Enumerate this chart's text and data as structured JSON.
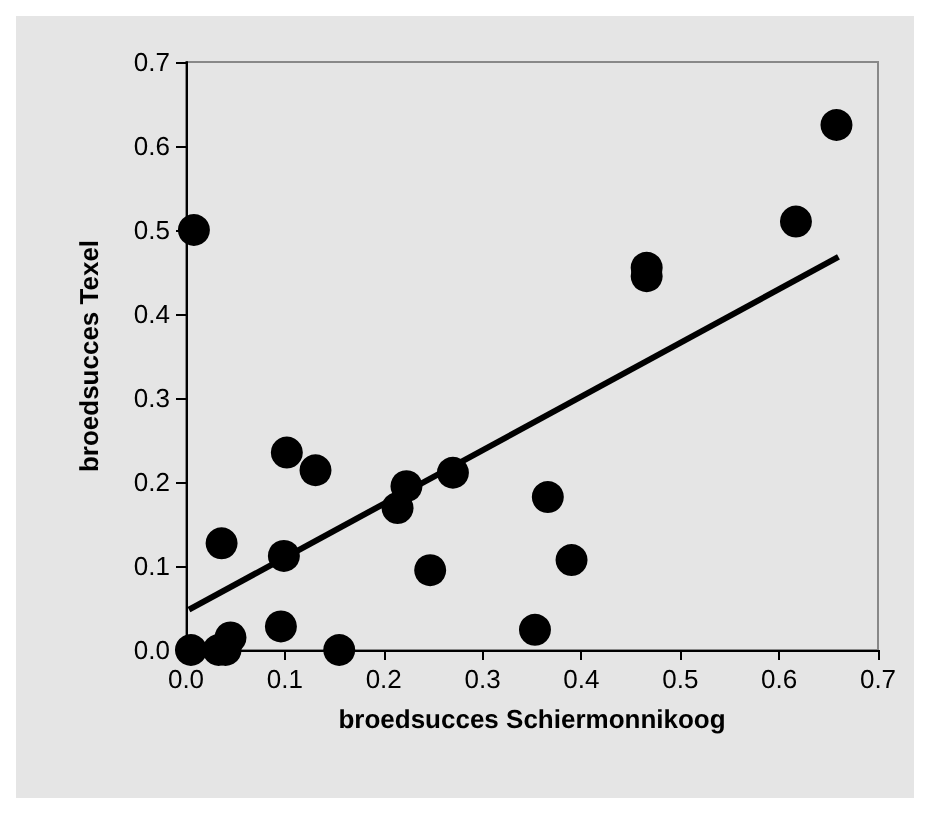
{
  "chart_data": {
    "type": "scatter",
    "xlabel": "broedsucces Schiermonnikoog",
    "ylabel": "broedsucces Texel",
    "xlim": [
      0,
      0.7
    ],
    "ylim": [
      0,
      0.7
    ],
    "xticks": [
      {
        "value": 0,
        "label": "0.0"
      },
      0.1,
      0.2,
      0.3,
      0.4,
      0.5,
      0.6,
      0.7
    ],
    "yticks": [
      {
        "value": 0,
        "label": "0.0"
      },
      0.1,
      0.2,
      0.3,
      0.4,
      0.5,
      0.6,
      0.7
    ],
    "grid": false,
    "marker": "circle",
    "series": [
      {
        "color": "#000000",
        "x": [
          0.005,
          0.033,
          0.04,
          0.045,
          0.036,
          0.096,
          0.099,
          0.102,
          0.131,
          0.155,
          0.214,
          0.223,
          0.27,
          0.247,
          0.353,
          0.366,
          0.39,
          0.008,
          0.466,
          0.466,
          0.617,
          0.658
        ],
        "values": [
          0,
          0,
          0,
          0.015,
          0.127,
          0.028,
          0.112,
          0.235,
          0.214,
          0,
          0.169,
          0.195,
          0.211,
          0.095,
          0.024,
          0.182,
          0.107,
          0.5,
          0.455,
          0.445,
          0.51,
          0.625
        ]
      },
      {
        "type": "line",
        "color": "#000000",
        "marker": "none",
        "line_style": "solid",
        "x": [
          0.003,
          0.66
        ],
        "values": [
          0.048,
          0.468
        ]
      }
    ]
  }
}
